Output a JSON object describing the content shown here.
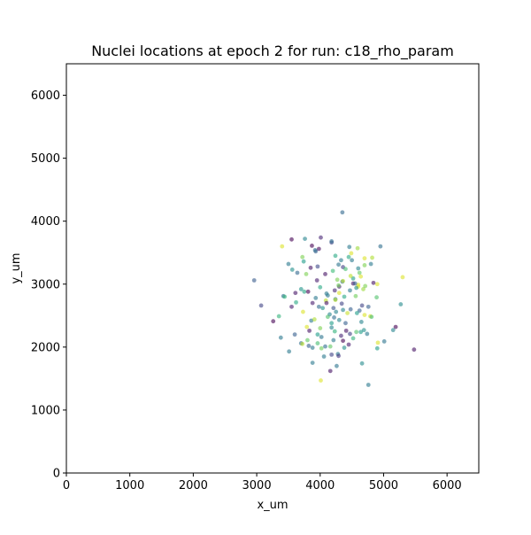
{
  "chart_data": {
    "type": "scatter",
    "title": "Nuclei locations at epoch 2 for run: c18_rho_param",
    "xlabel": "x_um",
    "ylabel": "y_um",
    "xlim": [
      0,
      6500
    ],
    "ylim": [
      0,
      6500
    ],
    "xticks": [
      0,
      1000,
      2000,
      3000,
      4000,
      5000,
      6000
    ],
    "yticks": [
      0,
      1000,
      2000,
      3000,
      4000,
      5000,
      6000
    ],
    "grid": false,
    "legend": "none",
    "colormap": "viridis",
    "marker_alpha": 0.6,
    "series": [
      {
        "x": [
          4350,
          3760,
          4950,
          3550,
          3400,
          4460,
          4500,
          3930,
          4180,
          4820,
          3500,
          4700,
          3960,
          4360,
          4200,
          4620,
          4520,
          3640,
          3950,
          4350,
          4600,
          4300,
          5300,
          3750,
          3700,
          4100,
          2960,
          3070,
          3610,
          4240,
          4890,
          3880,
          4660,
          4760,
          3550,
          3730,
          4620,
          4790,
          4150,
          4220,
          3350,
          3860,
          4300,
          3260,
          4180,
          3790,
          3830,
          4410,
          3960,
          4470,
          4330,
          4570,
          4020,
          4740,
          4210,
          5270,
          5010,
          4450,
          3800,
          4360,
          4020,
          4080,
          4180,
          4280,
          3700,
          3880,
          4260,
          4160,
          4010,
          4760,
          3920,
          4800,
          4400,
          4640,
          3620,
          4090,
          4560,
          5150,
          5190,
          4910,
          4660,
          3820,
          3380,
          3420,
          3440,
          3720,
          3780,
          4000,
          4290,
          4360,
          4520,
          4600,
          4680,
          4840,
          4900,
          4120,
          4240,
          4340,
          4480,
          4580,
          4700,
          4040,
          3600,
          3960,
          3880,
          3510,
          4290,
          4380,
          4060,
          4160,
          4000,
          4230,
          4400,
          4650,
          3720,
          4900,
          4810,
          4210,
          4100,
          4300,
          4470,
          4570,
          4330,
          4240,
          3980,
          3870,
          4010,
          4180,
          4290,
          3740,
          3850,
          4450,
          4490,
          4590,
          4700,
          4600,
          5480,
          4360,
          3910,
          3980,
          4430,
          4250,
          4640,
          4230,
          4080,
          3560,
          4550,
          4180,
          4120,
          3810,
          4380,
          4520,
          4710,
          4690,
          3930,
          4480,
          4270
        ],
        "y": [
          4140,
          3720,
          3600,
          3710,
          3600,
          3590,
          3380,
          3520,
          3660,
          3420,
          3320,
          3410,
          3280,
          3270,
          3210,
          3180,
          3090,
          3180,
          3060,
          3040,
          2960,
          2960,
          3110,
          2880,
          2920,
          2850,
          3060,
          2660,
          2860,
          2760,
          2790,
          2700,
          2660,
          2640,
          2640,
          2560,
          2580,
          2490,
          2520,
          2470,
          2490,
          2420,
          2430,
          2410,
          2310,
          2320,
          2260,
          2260,
          2200,
          2210,
          2180,
          2240,
          2160,
          2210,
          2110,
          2680,
          2090,
          2040,
          2110,
          2100,
          1980,
          2010,
          1880,
          1890,
          2060,
          1750,
          1700,
          1620,
          1470,
          1400,
          3540,
          3320,
          3240,
          3120,
          2710,
          2740,
          2810,
          2270,
          2320,
          2070,
          1740,
          2020,
          2150,
          2810,
          2800,
          3430,
          3160,
          2950,
          2980,
          3050,
          3010,
          2990,
          2920,
          3020,
          3000,
          2820,
          2750,
          2690,
          2600,
          2540,
          2510,
          2620,
          2200,
          2060,
          1990,
          1930,
          1860,
          1990,
          1850,
          2010,
          2300,
          2250,
          2380,
          2400,
          2050,
          1980,
          2480,
          2620,
          2700,
          2860,
          2900,
          2940,
          3380,
          3450,
          3560,
          3610,
          3740,
          3680,
          3310,
          3360,
          3260,
          3430,
          3490,
          3570,
          3300,
          3250,
          1960,
          2590,
          2440,
          2640,
          2540,
          2560,
          2240,
          2900,
          3160,
          3230,
          3010,
          2380,
          2480,
          2880,
          2800,
          2140,
          2970,
          2270,
          2780,
          3130,
          3070
        ],
        "c": [
          0.33,
          0.45,
          0.36,
          0.0,
          0.95,
          0.4,
          0.4,
          0.3,
          0.2,
          0.88,
          0.4,
          0.95,
          0.22,
          0.18,
          0.68,
          0.75,
          0.55,
          0.33,
          0.08,
          0.35,
          0.95,
          0.08,
          0.95,
          0.6,
          0.52,
          0.4,
          0.28,
          0.2,
          0.06,
          0.4,
          0.72,
          0.08,
          0.2,
          0.3,
          0.08,
          0.95,
          0.3,
          0.95,
          0.45,
          0.35,
          0.65,
          0.4,
          0.45,
          0.0,
          0.45,
          0.95,
          0.05,
          0.05,
          0.55,
          0.2,
          0.1,
          0.72,
          0.38,
          0.4,
          0.4,
          0.48,
          0.38,
          0.08,
          0.75,
          0.0,
          0.78,
          0.35,
          0.2,
          0.4,
          0.35,
          0.4,
          0.38,
          0.05,
          0.95,
          0.4,
          0.35,
          0.4,
          0.7,
          0.95,
          0.6,
          0.9,
          0.78,
          0.45,
          0.0,
          0.95,
          0.48,
          0.3,
          0.4,
          0.35,
          0.65,
          0.8,
          0.8,
          0.6,
          0.78,
          0.9,
          0.05,
          0.95,
          0.85,
          0.05,
          0.95,
          0.4,
          0.9,
          0.2,
          0.3,
          0.55,
          0.95,
          0.5,
          0.3,
          0.7,
          0.4,
          0.4,
          0.15,
          0.5,
          0.4,
          0.75,
          0.8,
          0.65,
          0.3,
          0.45,
          0.9,
          0.55,
          0.7,
          0.25,
          0.05,
          0.95,
          0.4,
          0.5,
          0.4,
          0.6,
          0.02,
          0.0,
          0.1,
          0.35,
          0.38,
          0.55,
          0.05,
          0.6,
          0.95,
          0.85,
          0.8,
          0.45,
          0.05,
          0.45,
          0.88,
          0.35,
          0.92,
          0.45,
          0.55,
          0.1,
          0.05,
          0.5,
          0.3,
          0.55,
          0.72,
          0.0,
          0.6,
          0.65,
          0.8,
          0.5,
          0.4,
          0.9,
          0.8
        ]
      }
    ]
  }
}
